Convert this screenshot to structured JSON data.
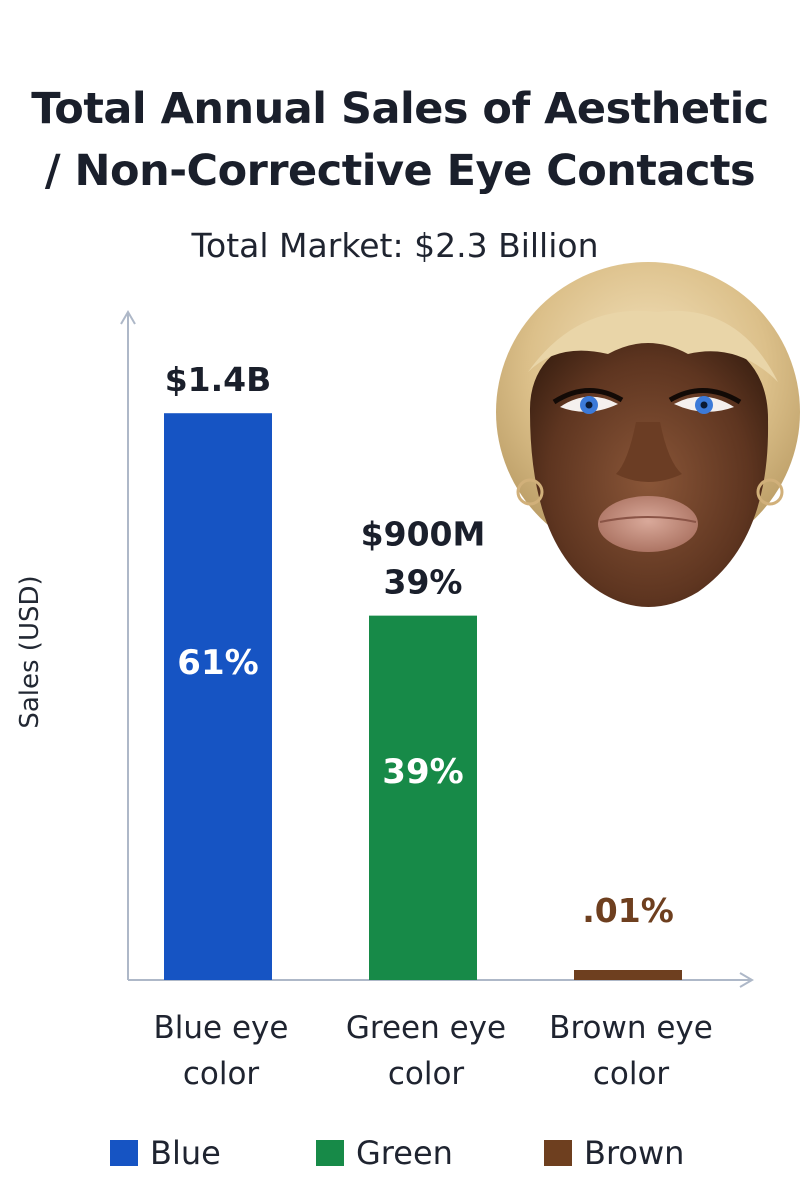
{
  "chart_data": {
    "type": "bar",
    "title": [
      "Total Annual Sales of Aesthetic",
      "/ Non-Corrective Eye Contacts"
    ],
    "subtitle": "Total Market: $2.3 Billion",
    "ylabel": "Sales (USD)",
    "xlabel": "",
    "categories": [
      "Blue eye color",
      "Green eye color",
      "Brown eye color"
    ],
    "category_lines": [
      [
        "Blue eye",
        "color"
      ],
      [
        "Green eye",
        "color"
      ],
      [
        "Brown eye",
        "color"
      ]
    ],
    "values_usd": [
      1400000000,
      900000000,
      230000
    ],
    "percent_values": [
      61,
      39,
      0.01
    ],
    "ylim": [
      0,
      1650000000
    ],
    "bar_labels": [
      {
        "top": [
          "$1.4B"
        ],
        "inside": "61%"
      },
      {
        "top": [
          "$900M",
          "39%"
        ],
        "inside": "39%"
      },
      {
        "top": [
          ".01%"
        ],
        "inside": ""
      }
    ],
    "colors": [
      "#1654c3",
      "#178a48",
      "#6e3f1f"
    ],
    "legend": {
      "placement": "bottom",
      "entries": [
        {
          "label": "Blue",
          "color": "#1654c3"
        },
        {
          "label": "Green",
          "color": "#178a48"
        },
        {
          "label": "Brown",
          "color": "#6e3f1f"
        }
      ]
    },
    "grid": false,
    "axis_color": "#aeb8c8"
  }
}
